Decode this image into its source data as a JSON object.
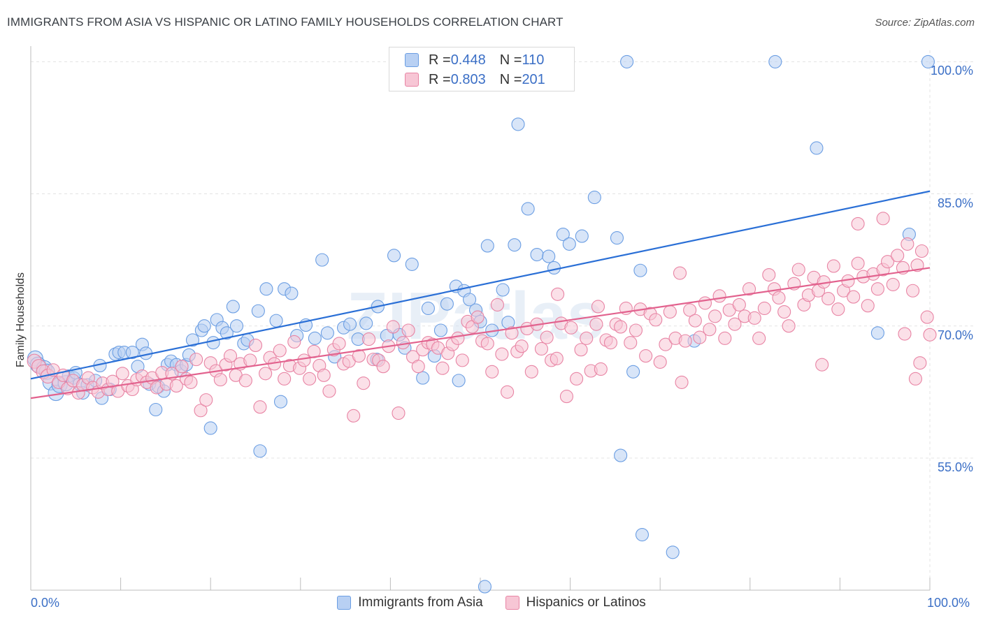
{
  "chart_data": {
    "type": "scatter",
    "title": "IMMIGRANTS FROM ASIA VS HISPANIC OR LATINO FAMILY HOUSEHOLDS CORRELATION CHART",
    "source": "Source: ZipAtlas.com",
    "xlabel": "",
    "ylabel": "Family Households",
    "xlim": [
      0,
      100
    ],
    "ylim": [
      40,
      101.3
    ],
    "x_tick_labels": [
      "0.0%",
      "100.0%"
    ],
    "y_ticks": [
      {
        "value": 100,
        "label": "100.0%"
      },
      {
        "value": 85,
        "label": "85.0%"
      },
      {
        "value": 70,
        "label": "70.0%"
      },
      {
        "value": 55,
        "label": "55.0%"
      }
    ],
    "watermark": "ZIPatlas",
    "legend": [
      {
        "r_label": "R = ",
        "r_value": "0.448",
        "n_label": "N = ",
        "n_value": "110"
      },
      {
        "r_label": "R = ",
        "r_value": "0.803",
        "n_label": "N = ",
        "n_value": "201"
      }
    ],
    "series": [
      {
        "name": "Immigrants from Asia",
        "color": "#6b9ee3",
        "fill": "#b8d0f3",
        "trend": {
          "x0": 0,
          "y0": 64.0,
          "x1": 100,
          "y1": 85.3
        },
        "points": [
          [
            0.5,
            66.3
          ],
          [
            0.8,
            65.6
          ],
          [
            1.5,
            65.2
          ],
          [
            1.8,
            64.8
          ],
          [
            2.2,
            63.6
          ],
          [
            2.8,
            62.4
          ],
          [
            3.2,
            63.3
          ],
          [
            3.9,
            63.5
          ],
          [
            4.2,
            64.3
          ],
          [
            4.8,
            64.1
          ],
          [
            5.0,
            64.7
          ],
          [
            5.4,
            63.4
          ],
          [
            5.8,
            62.4
          ],
          [
            6.3,
            63.3
          ],
          [
            7.2,
            63.8
          ],
          [
            7.7,
            65.5
          ],
          [
            7.9,
            61.8
          ],
          [
            8.8,
            62.8
          ],
          [
            9.4,
            66.8
          ],
          [
            9.8,
            67.0
          ],
          [
            10.4,
            67.0
          ],
          [
            11.3,
            67.0
          ],
          [
            11.9,
            65.4
          ],
          [
            12.4,
            67.9
          ],
          [
            12.8,
            66.9
          ],
          [
            13.2,
            63.4
          ],
          [
            13.9,
            60.5
          ],
          [
            14.2,
            63.1
          ],
          [
            14.8,
            62.6
          ],
          [
            15.2,
            65.6
          ],
          [
            15.6,
            66.0
          ],
          [
            16.2,
            65.6
          ],
          [
            16.7,
            64.9
          ],
          [
            17.3,
            65.6
          ],
          [
            17.6,
            66.7
          ],
          [
            18.0,
            68.4
          ],
          [
            19.0,
            69.5
          ],
          [
            19.3,
            70.0
          ],
          [
            20.3,
            68.1
          ],
          [
            20.7,
            70.7
          ],
          [
            21.3,
            69.8
          ],
          [
            21.8,
            69.2
          ],
          [
            22.5,
            72.2
          ],
          [
            22.9,
            70.0
          ],
          [
            23.7,
            68.0
          ],
          [
            24.1,
            68.4
          ],
          [
            25.3,
            71.7
          ],
          [
            26.2,
            74.2
          ],
          [
            27.3,
            70.6
          ],
          [
            27.8,
            61.4
          ],
          [
            28.2,
            74.2
          ],
          [
            29.0,
            73.7
          ],
          [
            29.6,
            68.9
          ],
          [
            30.6,
            70.1
          ],
          [
            31.6,
            68.6
          ],
          [
            32.4,
            77.5
          ],
          [
            33.0,
            69.2
          ],
          [
            33.8,
            66.5
          ],
          [
            34.8,
            69.8
          ],
          [
            35.5,
            70.2
          ],
          [
            36.4,
            68.5
          ],
          [
            37.3,
            70.3
          ],
          [
            38.6,
            72.2
          ],
          [
            39.6,
            68.9
          ],
          [
            40.4,
            78.0
          ],
          [
            41.0,
            69.0
          ],
          [
            41.6,
            67.5
          ],
          [
            42.4,
            77.0
          ],
          [
            43.6,
            64.1
          ],
          [
            44.2,
            72.0
          ],
          [
            44.9,
            66.6
          ],
          [
            45.6,
            69.5
          ],
          [
            46.3,
            72.5
          ],
          [
            47.3,
            74.5
          ],
          [
            47.6,
            63.8
          ],
          [
            48.2,
            74.0
          ],
          [
            48.8,
            73.0
          ],
          [
            49.5,
            71.8
          ],
          [
            50.0,
            70.5
          ],
          [
            50.8,
            79.1
          ],
          [
            51.3,
            69.5
          ],
          [
            52.5,
            74.1
          ],
          [
            53.1,
            70.4
          ],
          [
            53.8,
            79.2
          ],
          [
            54.2,
            92.9
          ],
          [
            55.3,
            83.3
          ],
          [
            56.3,
            78.1
          ],
          [
            57.6,
            77.9
          ],
          [
            58.2,
            76.6
          ],
          [
            59.2,
            80.4
          ],
          [
            59.9,
            79.3
          ],
          [
            61.3,
            80.2
          ],
          [
            62.7,
            84.6
          ],
          [
            65.2,
            80.0
          ],
          [
            65.6,
            55.3
          ],
          [
            67.0,
            64.8
          ],
          [
            67.8,
            76.3
          ],
          [
            68.0,
            46.3
          ],
          [
            71.4,
            44.3
          ],
          [
            73.8,
            68.3
          ],
          [
            82.8,
            100.0
          ],
          [
            87.4,
            90.2
          ],
          [
            94.2,
            69.2
          ],
          [
            97.7,
            80.4
          ],
          [
            99.8,
            100.0
          ],
          [
            66.3,
            100.0
          ],
          [
            25.5,
            55.8
          ],
          [
            20.0,
            58.4
          ],
          [
            50.5,
            40.4
          ],
          [
            38.5,
            66.2
          ]
        ]
      },
      {
        "name": "Hispanics or Latinos",
        "color": "#e884a4",
        "fill": "#f7c6d5",
        "trend": {
          "x0": 0,
          "y0": 61.8,
          "x1": 100,
          "y1": 76.6
        },
        "points": [
          [
            0.4,
            66.0
          ],
          [
            0.9,
            65.4
          ],
          [
            1.4,
            64.8
          ],
          [
            1.9,
            64.3
          ],
          [
            2.5,
            65.0
          ],
          [
            3.1,
            63.6
          ],
          [
            3.6,
            64.4
          ],
          [
            4.1,
            62.9
          ],
          [
            4.7,
            63.8
          ],
          [
            5.3,
            62.4
          ],
          [
            5.8,
            63.3
          ],
          [
            6.4,
            64.1
          ],
          [
            6.9,
            63.0
          ],
          [
            7.5,
            62.5
          ],
          [
            8.0,
            63.5
          ],
          [
            8.6,
            62.8
          ],
          [
            9.1,
            63.7
          ],
          [
            9.7,
            62.6
          ],
          [
            10.2,
            64.6
          ],
          [
            10.8,
            63.2
          ],
          [
            11.3,
            62.8
          ],
          [
            11.8,
            63.9
          ],
          [
            12.4,
            64.3
          ],
          [
            12.9,
            63.6
          ],
          [
            13.5,
            64.1
          ],
          [
            14.0,
            63.0
          ],
          [
            14.6,
            64.7
          ],
          [
            15.1,
            63.4
          ],
          [
            15.7,
            64.6
          ],
          [
            16.2,
            63.2
          ],
          [
            16.8,
            65.4
          ],
          [
            17.3,
            64.0
          ],
          [
            17.8,
            63.6
          ],
          [
            18.4,
            66.2
          ],
          [
            18.9,
            60.4
          ],
          [
            19.5,
            61.6
          ],
          [
            20.0,
            65.8
          ],
          [
            20.6,
            64.9
          ],
          [
            21.1,
            63.9
          ],
          [
            21.7,
            65.6
          ],
          [
            22.2,
            66.6
          ],
          [
            22.8,
            64.4
          ],
          [
            23.3,
            65.7
          ],
          [
            23.9,
            63.8
          ],
          [
            24.4,
            66.1
          ],
          [
            25.0,
            67.8
          ],
          [
            25.5,
            60.8
          ],
          [
            26.1,
            64.6
          ],
          [
            26.6,
            66.4
          ],
          [
            27.1,
            65.7
          ],
          [
            27.7,
            67.2
          ],
          [
            28.2,
            64.0
          ],
          [
            28.8,
            65.5
          ],
          [
            29.3,
            68.2
          ],
          [
            29.9,
            65.2
          ],
          [
            30.4,
            66.1
          ],
          [
            31.0,
            64.0
          ],
          [
            31.5,
            67.1
          ],
          [
            32.1,
            65.5
          ],
          [
            32.6,
            64.4
          ],
          [
            33.2,
            62.6
          ],
          [
            33.7,
            67.3
          ],
          [
            34.3,
            68.0
          ],
          [
            34.8,
            65.7
          ],
          [
            35.4,
            66.0
          ],
          [
            35.9,
            59.8
          ],
          [
            36.5,
            66.6
          ],
          [
            37.0,
            63.5
          ],
          [
            37.6,
            68.5
          ],
          [
            38.1,
            66.2
          ],
          [
            38.7,
            66.1
          ],
          [
            39.2,
            65.4
          ],
          [
            39.8,
            67.7
          ],
          [
            40.3,
            69.9
          ],
          [
            40.9,
            60.1
          ],
          [
            41.4,
            68.1
          ],
          [
            42.0,
            69.5
          ],
          [
            42.5,
            66.5
          ],
          [
            43.1,
            65.4
          ],
          [
            43.6,
            67.3
          ],
          [
            44.2,
            68.1
          ],
          [
            44.7,
            67.9
          ],
          [
            45.3,
            67.5
          ],
          [
            45.8,
            65.2
          ],
          [
            46.4,
            66.9
          ],
          [
            46.9,
            67.9
          ],
          [
            47.5,
            68.6
          ],
          [
            48.0,
            66.1
          ],
          [
            48.6,
            70.5
          ],
          [
            49.1,
            69.9
          ],
          [
            49.7,
            71.0
          ],
          [
            50.2,
            68.3
          ],
          [
            50.8,
            68.0
          ],
          [
            51.3,
            64.8
          ],
          [
            51.9,
            72.4
          ],
          [
            52.4,
            66.8
          ],
          [
            53.0,
            62.5
          ],
          [
            53.5,
            69.2
          ],
          [
            54.1,
            67.1
          ],
          [
            54.6,
            67.7
          ],
          [
            55.2,
            69.7
          ],
          [
            55.7,
            64.8
          ],
          [
            56.3,
            70.2
          ],
          [
            56.8,
            67.4
          ],
          [
            57.4,
            68.7
          ],
          [
            57.9,
            66.1
          ],
          [
            58.5,
            66.3
          ],
          [
            59.0,
            70.3
          ],
          [
            59.6,
            62.0
          ],
          [
            60.1,
            69.8
          ],
          [
            60.7,
            64.0
          ],
          [
            61.2,
            67.3
          ],
          [
            61.8,
            68.6
          ],
          [
            62.3,
            64.9
          ],
          [
            62.9,
            70.2
          ],
          [
            63.4,
            65.1
          ],
          [
            64.0,
            68.4
          ],
          [
            64.5,
            68.1
          ],
          [
            65.1,
            70.2
          ],
          [
            65.6,
            69.9
          ],
          [
            66.2,
            72.0
          ],
          [
            66.7,
            68.1
          ],
          [
            67.3,
            69.5
          ],
          [
            67.8,
            71.9
          ],
          [
            68.4,
            66.6
          ],
          [
            68.9,
            71.4
          ],
          [
            69.5,
            70.7
          ],
          [
            70.0,
            65.9
          ],
          [
            70.6,
            67.9
          ],
          [
            71.1,
            71.6
          ],
          [
            71.7,
            68.6
          ],
          [
            72.2,
            76.0
          ],
          [
            72.8,
            68.3
          ],
          [
            73.3,
            71.8
          ],
          [
            73.9,
            70.6
          ],
          [
            74.4,
            68.7
          ],
          [
            75.0,
            72.6
          ],
          [
            75.5,
            69.6
          ],
          [
            76.1,
            71.1
          ],
          [
            76.6,
            73.4
          ],
          [
            77.2,
            68.6
          ],
          [
            77.7,
            71.8
          ],
          [
            78.3,
            70.2
          ],
          [
            78.8,
            72.4
          ],
          [
            79.4,
            71.1
          ],
          [
            79.9,
            74.2
          ],
          [
            80.5,
            70.9
          ],
          [
            81.0,
            68.6
          ],
          [
            81.6,
            72.0
          ],
          [
            82.1,
            75.8
          ],
          [
            82.7,
            74.2
          ],
          [
            83.2,
            73.2
          ],
          [
            83.8,
            71.6
          ],
          [
            84.3,
            70.0
          ],
          [
            84.9,
            74.8
          ],
          [
            85.4,
            76.4
          ],
          [
            86.0,
            72.4
          ],
          [
            86.5,
            73.5
          ],
          [
            87.1,
            75.5
          ],
          [
            87.6,
            74.0
          ],
          [
            88.2,
            75.0
          ],
          [
            88.7,
            73.1
          ],
          [
            89.3,
            76.8
          ],
          [
            89.8,
            71.9
          ],
          [
            90.4,
            74.0
          ],
          [
            90.9,
            75.1
          ],
          [
            91.5,
            73.3
          ],
          [
            92.0,
            77.1
          ],
          [
            92.6,
            75.6
          ],
          [
            93.1,
            72.3
          ],
          [
            93.7,
            75.9
          ],
          [
            94.2,
            74.2
          ],
          [
            94.8,
            76.4
          ],
          [
            95.3,
            77.3
          ],
          [
            95.9,
            74.7
          ],
          [
            96.4,
            78.0
          ],
          [
            97.0,
            76.6
          ],
          [
            97.5,
            79.3
          ],
          [
            98.1,
            74.0
          ],
          [
            98.6,
            76.9
          ],
          [
            99.1,
            78.5
          ],
          [
            99.7,
            71.0
          ],
          [
            100.0,
            69.0
          ],
          [
            97.2,
            69.1
          ],
          [
            98.4,
            64.0
          ],
          [
            98.9,
            65.8
          ],
          [
            63.1,
            72.2
          ],
          [
            58.6,
            73.6
          ],
          [
            72.4,
            63.6
          ],
          [
            88.0,
            65.6
          ],
          [
            92.0,
            81.6
          ],
          [
            94.8,
            82.2
          ]
        ]
      }
    ]
  }
}
